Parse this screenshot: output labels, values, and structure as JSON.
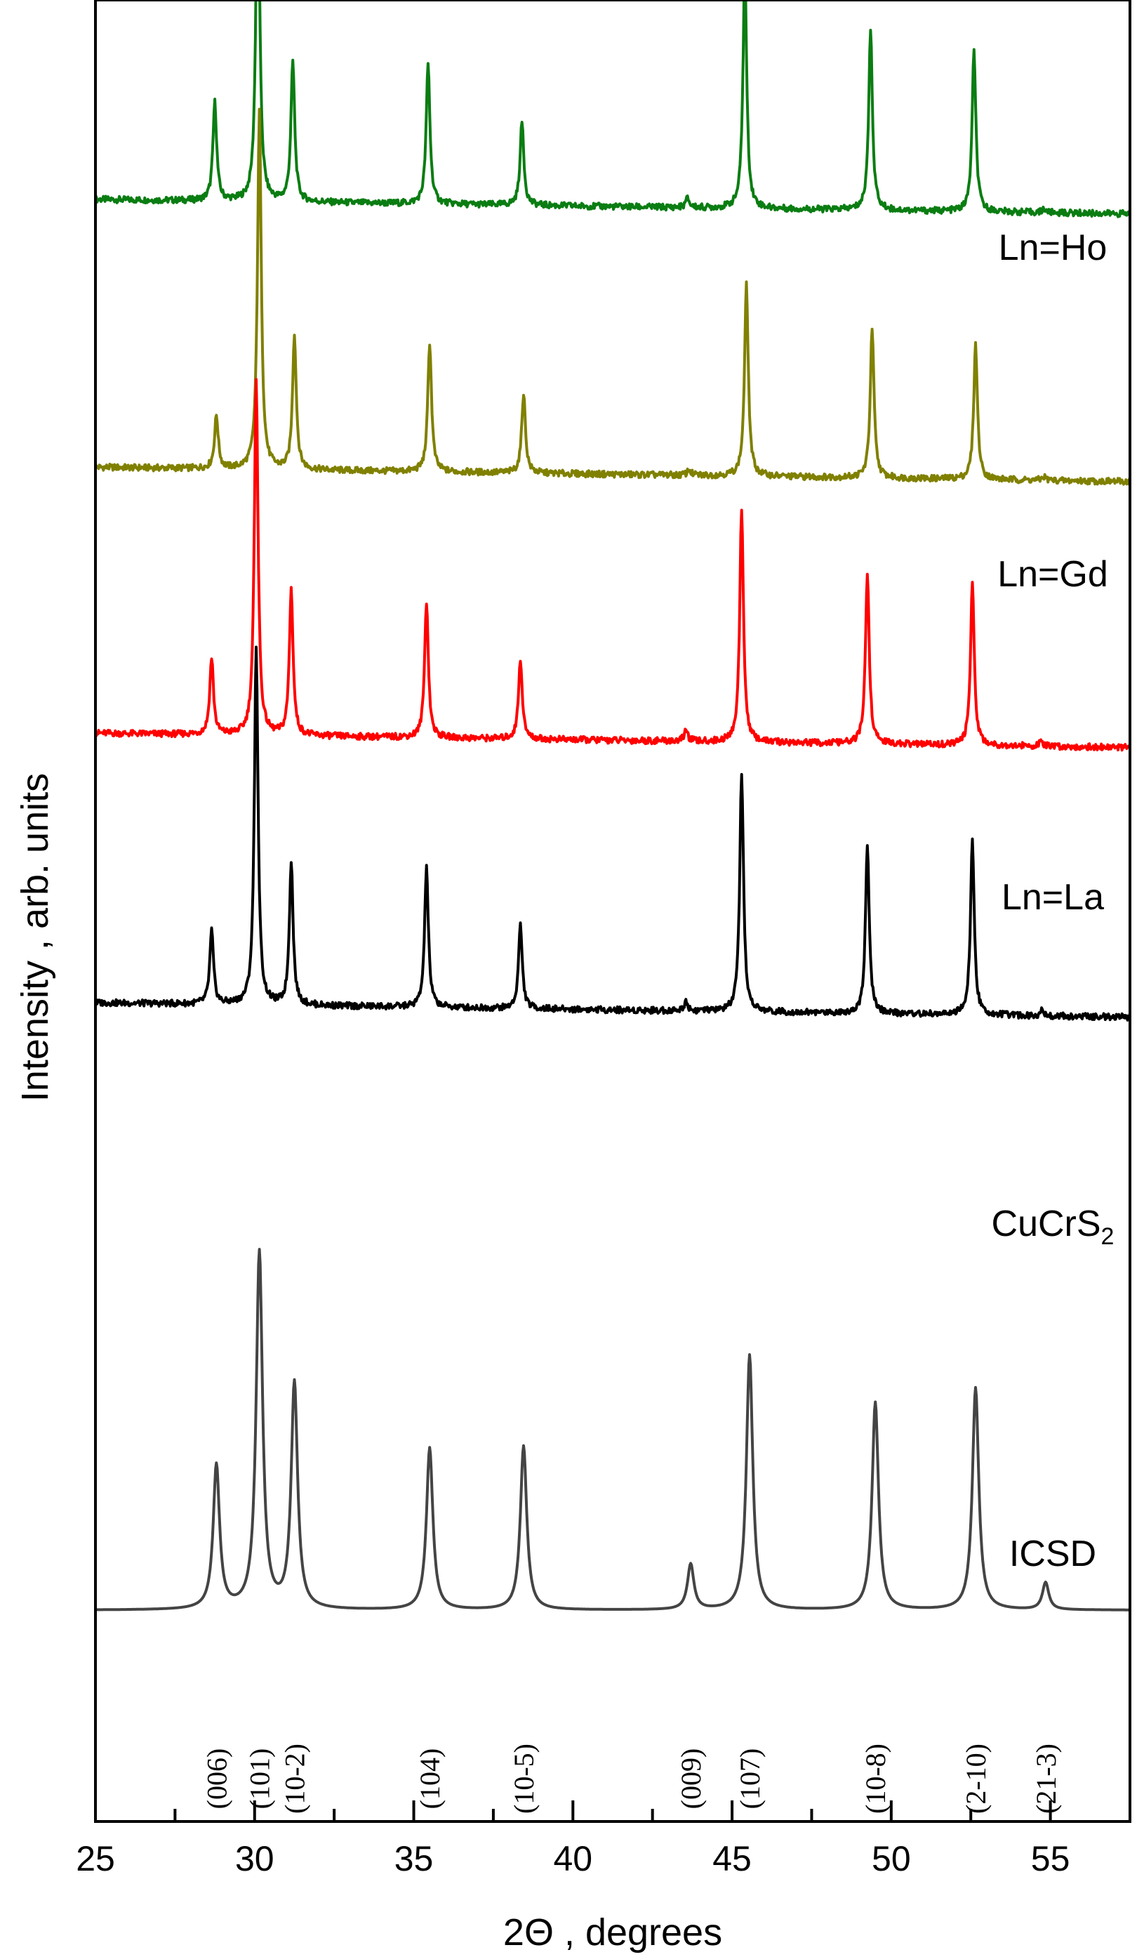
{
  "chart_data": {
    "type": "line",
    "title": "",
    "xlabel": "2Θ , degrees",
    "ylabel": "Intensity , arb. units",
    "xlim": [
      25,
      57.5
    ],
    "ylim": [
      0,
      1
    ],
    "grid": false,
    "x_ticks": [
      "25",
      "30",
      "35",
      "40",
      "45",
      "50",
      "55"
    ],
    "series": [
      {
        "name": "Ln=Ho",
        "color": "#0a7d12",
        "baseline": [
          [
            25,
            0.1275
          ],
          [
            57.5,
            0.1196
          ]
        ],
        "peaks": [
          [
            28.75,
            0.054
          ],
          [
            30.1,
            0.196
          ],
          [
            31.2,
            0.077
          ],
          [
            35.45,
            0.077
          ],
          [
            38.4,
            0.046
          ],
          [
            43.6,
            0.005
          ],
          [
            45.4,
            0.131
          ],
          [
            49.35,
            0.099
          ],
          [
            52.6,
            0.088
          ],
          [
            54.8,
            0.002
          ]
        ]
      },
      {
        "name": "Ln=Gd",
        "color": "#808000",
        "baseline": [
          [
            25,
            0.1275
          ],
          [
            57.5,
            0.1196
          ]
        ],
        "peaks": [
          [
            28.8,
            0.029
          ],
          [
            30.15,
            0.196
          ],
          [
            31.25,
            0.074
          ],
          [
            35.5,
            0.071
          ],
          [
            38.45,
            0.044
          ],
          [
            43.65,
            0.003
          ],
          [
            45.45,
            0.105
          ],
          [
            49.4,
            0.082
          ],
          [
            52.65,
            0.074
          ],
          [
            54.8,
            0.002
          ]
        ]
      },
      {
        "name": "Ln=La",
        "color": "#ff0000",
        "baseline": [
          [
            25,
            0.1275
          ],
          [
            57.5,
            0.1196
          ]
        ],
        "peaks": [
          [
            28.65,
            0.042
          ],
          [
            30.05,
            0.196
          ],
          [
            31.15,
            0.08
          ],
          [
            35.4,
            0.075
          ],
          [
            38.35,
            0.044
          ],
          [
            43.55,
            0.006
          ],
          [
            45.3,
            0.127
          ],
          [
            49.25,
            0.094
          ],
          [
            52.55,
            0.089
          ],
          [
            54.7,
            0.002
          ]
        ]
      },
      {
        "name": "CuCrS",
        "name_subscript": "2",
        "color": "#000000",
        "baseline": [
          [
            25,
            0.1275
          ],
          [
            57.5,
            0.1196
          ]
        ],
        "peaks": [
          [
            28.65,
            0.04
          ],
          [
            30.05,
            0.196
          ],
          [
            31.15,
            0.079
          ],
          [
            35.4,
            0.077
          ],
          [
            38.35,
            0.046
          ],
          [
            43.55,
            0.005
          ],
          [
            45.3,
            0.13
          ],
          [
            49.25,
            0.092
          ],
          [
            52.55,
            0.096
          ],
          [
            54.75,
            0.003
          ]
        ]
      },
      {
        "name": "ICSD",
        "color": "#444444",
        "baseline": [
          [
            25,
            0.116
          ],
          [
            57.5,
            0.116
          ]
        ],
        "peaks": [
          [
            28.8,
            0.079
          ],
          [
            30.15,
            0.196
          ],
          [
            31.25,
            0.124
          ],
          [
            35.5,
            0.089
          ],
          [
            38.45,
            0.09
          ],
          [
            43.7,
            0.025
          ],
          [
            45.55,
            0.14
          ],
          [
            49.5,
            0.114
          ],
          [
            52.65,
            0.122
          ],
          [
            54.85,
            0.015
          ]
        ]
      }
    ],
    "annotations": [
      {
        "text": "(006)",
        "x": 28.8
      },
      {
        "text": "(101)",
        "x": 30.15
      },
      {
        "text": "(10-2)",
        "x": 31.25
      },
      {
        "text": "(104)",
        "x": 35.5
      },
      {
        "text": "(10-5)",
        "x": 38.45
      },
      {
        "text": "(009)",
        "x": 43.7
      },
      {
        "text": "(107)",
        "x": 45.55
      },
      {
        "text": "(10-8)",
        "x": 49.5
      },
      {
        "text": "(2-10)",
        "x": 52.65
      },
      {
        "text": "(21-3)",
        "x": 54.85
      }
    ]
  }
}
